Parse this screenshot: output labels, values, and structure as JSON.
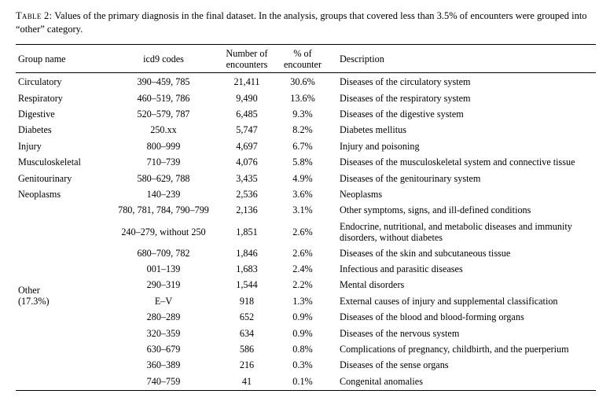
{
  "caption": {
    "label": "Table 2:",
    "text": "Values of the primary diagnosis in the final dataset. In the analysis, groups that covered less than 3.5% of encounters were grouped into “other” category."
  },
  "headers": {
    "group": "Group name",
    "codes": "icd9 codes",
    "count_l1": "Number of",
    "count_l2": "encounters",
    "pct_l1": "% of",
    "pct_l2": "encounter",
    "desc": "Description"
  },
  "other_group": {
    "name": "Other",
    "pct": "(17.3%)"
  },
  "rows": [
    {
      "group": "Circulatory",
      "codes": "390–459, 785",
      "count": "21,411",
      "pct": "30.6%",
      "desc": "Diseases of the circulatory system"
    },
    {
      "group": "Respiratory",
      "codes": "460–519, 786",
      "count": "9,490",
      "pct": "13.6%",
      "desc": "Diseases of the respiratory system"
    },
    {
      "group": "Digestive",
      "codes": "520–579, 787",
      "count": "6,485",
      "pct": "9.3%",
      "desc": "Diseases of the digestive system"
    },
    {
      "group": "Diabetes",
      "codes": "250.xx",
      "count": "5,747",
      "pct": "8.2%",
      "desc": "Diabetes mellitus"
    },
    {
      "group": "Injury",
      "codes": "800–999",
      "count": "4,697",
      "pct": "6.7%",
      "desc": "Injury and poisoning"
    },
    {
      "group": "Musculoskeletal",
      "codes": "710–739",
      "count": "4,076",
      "pct": "5.8%",
      "desc": "Diseases of the musculoskeletal system and connective tissue"
    },
    {
      "group": "Genitourinary",
      "codes": "580–629, 788",
      "count": "3,435",
      "pct": "4.9%",
      "desc": "Diseases of the genitourinary system"
    },
    {
      "group": "Neoplasms",
      "codes": "140–239",
      "count": "2,536",
      "pct": "3.6%",
      "desc": "Neoplasms"
    },
    {
      "group": "",
      "codes": "780, 781, 784, 790–799",
      "count": "2,136",
      "pct": "3.1%",
      "desc": "Other symptoms, signs, and ill-defined conditions"
    },
    {
      "group": "",
      "codes": "240–279, without 250",
      "count": "1,851",
      "pct": "2.6%",
      "desc": "Endocrine, nutritional, and metabolic diseases and immunity disorders, without diabetes"
    },
    {
      "group": "",
      "codes": "680–709, 782",
      "count": "1,846",
      "pct": "2.6%",
      "desc": "Diseases of the skin and subcutaneous tissue"
    },
    {
      "group": "",
      "codes": "001–139",
      "count": "1,683",
      "pct": "2.4%",
      "desc": "Infectious and parasitic diseases"
    },
    {
      "group": "",
      "codes": "290–319",
      "count": "1,544",
      "pct": "2.2%",
      "desc": "Mental disorders"
    },
    {
      "group": "",
      "codes": "E–V",
      "count": "918",
      "pct": "1.3%",
      "desc": "External causes of injury and supplemental classification"
    },
    {
      "group": "",
      "codes": "280–289",
      "count": "652",
      "pct": "0.9%",
      "desc": "Diseases of the blood and blood-forming organs"
    },
    {
      "group": "",
      "codes": "320–359",
      "count": "634",
      "pct": "0.9%",
      "desc": "Diseases of the nervous system"
    },
    {
      "group": "",
      "codes": "630–679",
      "count": "586",
      "pct": "0.8%",
      "desc": "Complications of pregnancy, childbirth, and the puerperium"
    },
    {
      "group": "",
      "codes": "360–389",
      "count": "216",
      "pct": "0.3%",
      "desc": "Diseases of the sense organs"
    },
    {
      "group": "",
      "codes": "740–759",
      "count": "41",
      "pct": "0.1%",
      "desc": "Congenital anomalies"
    }
  ]
}
